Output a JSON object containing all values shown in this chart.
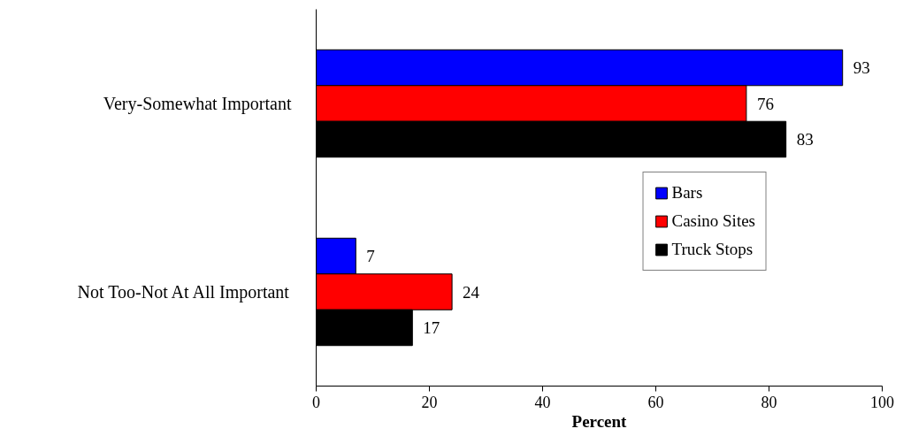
{
  "chart_data": {
    "type": "bar",
    "orientation": "horizontal",
    "xlabel": "Percent",
    "categories": [
      "Very-Somewhat Important",
      "Not Too-Not At All Important"
    ],
    "series": [
      {
        "name": "Bars",
        "color": "#0000ff",
        "values": [
          93,
          7
        ]
      },
      {
        "name": "Casino Sites",
        "color": "#ff0000",
        "values": [
          76,
          24
        ]
      },
      {
        "name": "Truck Stops",
        "color": "#000000",
        "values": [
          83,
          17
        ]
      }
    ],
    "xlim": [
      0,
      100
    ],
    "xticks": [
      0,
      20,
      40,
      60,
      80,
      100
    ],
    "data_labels": true,
    "grid": false,
    "legend": "bottom right"
  }
}
